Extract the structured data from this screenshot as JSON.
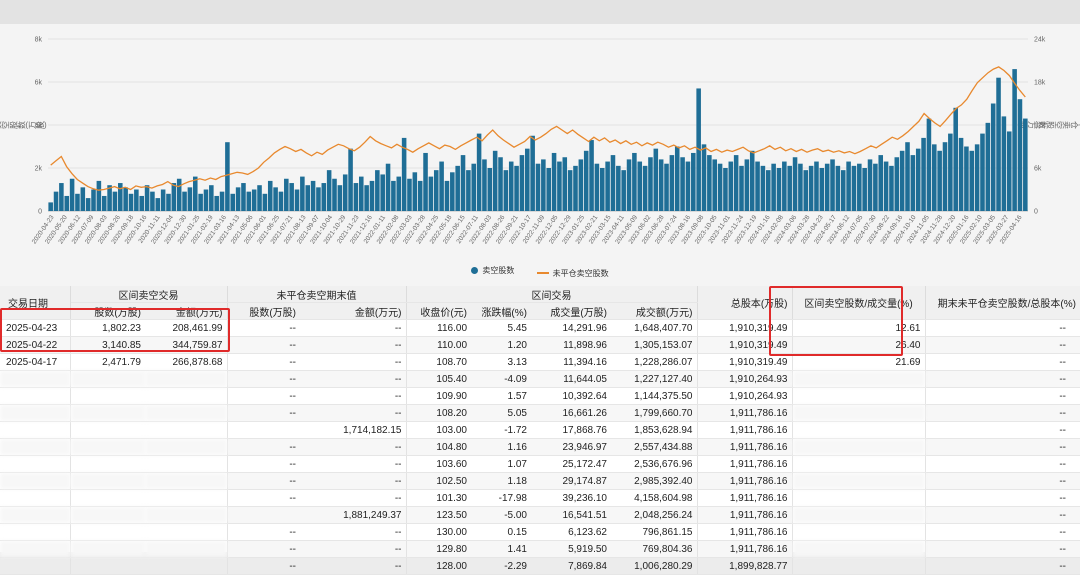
{
  "chart_data": {
    "type": "bar",
    "left_axis": {
      "ticks": [
        "0",
        "2k",
        "4k",
        "6k",
        "8k"
      ],
      "label": "卖空股数(万股)",
      "ylim": [
        0,
        8000
      ]
    },
    "right_axis": {
      "ticks": [
        "0",
        "6k",
        "12k",
        "18k",
        "24k"
      ],
      "label": "未平仓卖空股数(万股)",
      "ylim": [
        0,
        24000
      ]
    },
    "x_ticks": [
      "2020-04-23",
      "2020-05-20",
      "2020-06-12",
      "2020-07-09",
      "2020-08-03",
      "2020-08-26",
      "2020-09-18",
      "2020-10-16",
      "2020-11-11",
      "2020-12-04",
      "2020-12-30",
      "2021-01-25",
      "2021-02-19",
      "2021-03-16",
      "2021-04-13",
      "2021-05-06",
      "2021-06-01",
      "2021-06-25",
      "2021-07-21",
      "2021-08-13",
      "2021-09-07",
      "2021-10-04",
      "2021-10-29",
      "2021-11-23",
      "2021-12-16",
      "2022-01-11",
      "2022-02-08",
      "2022-03-03",
      "2022-03-28",
      "2022-04-25",
      "2022-05-18",
      "2022-06-15",
      "2022-07-11",
      "2022-08-03",
      "2022-08-26",
      "2022-09-21",
      "2022-10-17",
      "2022-11-09",
      "2022-12-05",
      "2022-12-29",
      "2023-01-25",
      "2023-02-21",
      "2023-03-15",
      "2023-04-11",
      "2023-05-09",
      "2023-06-02",
      "2023-06-28",
      "2023-07-24",
      "2023-08-16",
      "2023-09-08",
      "2023-10-05",
      "2023-11-01",
      "2023-11-24",
      "2023-12-19",
      "2024-01-16",
      "2024-02-08",
      "2024-03-06",
      "2024-03-28",
      "2024-04-23",
      "2024-05-17",
      "2024-06-12",
      "2024-07-05",
      "2024-07-30",
      "2024-08-22",
      "2024-09-16",
      "2024-10-10",
      "2024-11-05",
      "2024-11-28",
      "2024-12-20",
      "2025-01-16",
      "2025-02-10",
      "2025-03-05",
      "2025-03-27",
      "2025-04-16"
    ],
    "series": [
      {
        "name": "卖空股数",
        "type": "bar",
        "color": "#1f6e96",
        "values": [
          400,
          900,
          1300,
          700,
          1500,
          800,
          1100,
          600,
          1000,
          1400,
          700,
          1200,
          900,
          1300,
          1100,
          800,
          1000,
          700,
          1200,
          900,
          600,
          1000,
          800,
          1300,
          1500,
          900,
          1100,
          1600,
          800,
          1000,
          1200,
          700,
          900,
          3200,
          800,
          1100,
          1300,
          900,
          1000,
          1200,
          800,
          1400,
          1100,
          900,
          1500,
          1300,
          1000,
          1600,
          1200,
          1400,
          1100,
          1300,
          1900,
          1500,
          1200,
          1700,
          2900,
          1300,
          1600,
          1200,
          1400,
          1900,
          1700,
          2200,
          1400,
          1600,
          3400,
          1500,
          1800,
          1400,
          2700,
          1600,
          1900,
          2300,
          1400,
          1800,
          2100,
          2600,
          1900,
          2200,
          3600,
          2400,
          2000,
          2800,
          2500,
          1900,
          2300,
          2100,
          2600,
          2900,
          3500,
          2200,
          2400,
          2000,
          2700,
          2300,
          2500,
          1900,
          2100,
          2400,
          2800,
          3300,
          2200,
          2000,
          2300,
          2600,
          2100,
          1900,
          2400,
          2700,
          2300,
          2100,
          2500,
          2900,
          2400,
          2200,
          2600,
          3000,
          2500,
          2300,
          2700,
          5700,
          3100,
          2600,
          2400,
          2200,
          2000,
          2300,
          2600,
          2100,
          2400,
          2800,
          2300,
          2100,
          1900,
          2200,
          2000,
          2300,
          2100,
          2500,
          2200,
          1900,
          2100,
          2300,
          2000,
          2200,
          2400,
          2100,
          1900,
          2300,
          2100,
          2200,
          2000,
          2400,
          2200,
          2600,
          2300,
          2100,
          2500,
          2800,
          3200,
          2600,
          2900,
          3400,
          4300,
          3100,
          2800,
          3200,
          3600,
          4800,
          3400,
          3000,
          2800,
          3100,
          3600,
          4100,
          5000,
          6200,
          4400,
          3700,
          6600,
          5200,
          4300
        ]
      },
      {
        "name": "未平仓卖空股数",
        "type": "line",
        "color": "#e8892e",
        "values": [
          6400,
          7000,
          7600,
          6200,
          5200,
          4400,
          3900,
          3400,
          3100,
          2900,
          3000,
          3200,
          3400,
          3100,
          3300,
          3000,
          3500,
          3300,
          3400,
          3200,
          3500,
          3700,
          4100,
          3600,
          3400,
          3800,
          4100,
          4300,
          4500,
          4300,
          4600,
          4400,
          4800,
          5000,
          5200,
          5400,
          5300,
          5100,
          5500,
          6000,
          6800,
          7400,
          8100,
          8600,
          9000,
          8700,
          8300,
          8600,
          8100,
          7700,
          8200,
          7900,
          8500,
          8900,
          9300,
          9100,
          8700,
          8400,
          8900,
          9600,
          10400,
          9800,
          9400,
          9100,
          8800,
          9300,
          8900,
          8600,
          8200,
          8700,
          9100,
          9500,
          9100,
          8700,
          9200,
          9000,
          8600,
          9100,
          9500,
          9900,
          10300,
          9800,
          10600,
          11300,
          10500,
          9900,
          9400,
          8900,
          9300,
          9700,
          10400,
          9900,
          10300,
          10800,
          11400,
          11800,
          11300,
          10800,
          11300,
          10700,
          10200,
          9700,
          10300,
          9800,
          10200,
          9600,
          9900,
          9400,
          9800,
          9300,
          9600,
          9100,
          9500,
          9200,
          9600,
          9300,
          8900,
          9200,
          8800,
          9100,
          8600,
          8900,
          8500,
          8800,
          8300,
          8600,
          8200,
          8500,
          8300,
          8600,
          8900,
          8400,
          8100,
          8400,
          8700,
          9100,
          8600,
          8900,
          8400,
          8700,
          8300,
          8600,
          8200,
          8500,
          8700,
          8300,
          8500,
          8200,
          8400,
          8100,
          8300,
          8000,
          8300,
          8700,
          9100,
          8800,
          9300,
          9800,
          10300,
          10000,
          10500,
          11100,
          11800,
          12500,
          13600,
          12900,
          12300,
          11800,
          12600,
          13500,
          14300,
          14800,
          15600,
          16800,
          17900,
          18600,
          19300,
          19800,
          20100,
          19600,
          18900,
          17800,
          16800,
          15900
        ]
      }
    ]
  },
  "legend": {
    "bar_label": "卖空股数",
    "line_label": "未平仓卖空股数"
  },
  "table": {
    "group_headers": {
      "date": "交易日期",
      "interval_short": "区间卖空交易",
      "open_short": "未平仓卖空期末值",
      "interval_trade": "区间交易",
      "total_shares": "总股本(万股)",
      "ratio_volume": "区间卖空股数/成交量(%)",
      "ratio_total": "期末未平仓卖空股数/总股本(%)"
    },
    "sub_headers": {
      "short_shares": "股数(万股)",
      "short_amount": "金额(万元)",
      "open_shares": "股数(万股)",
      "open_amount": "金额(万元)",
      "close": "收盘价(元)",
      "change": "涨跌幅(%)",
      "volume": "成交量(万股)",
      "turnover": "成交额(万元)"
    },
    "rows": [
      {
        "date": "2025-04-23",
        "short_shares": "1,802.23",
        "short_amount": "208,461.99",
        "open_shares": "--",
        "open_amount": "--",
        "close": "116.00",
        "change": "5.45",
        "volume": "14,291.96",
        "turnover": "1,648,407.70",
        "total": "1,910,319.49",
        "ratio": "12.61",
        "ratio_total": "--"
      },
      {
        "date": "2025-04-22",
        "short_shares": "3,140.85",
        "short_amount": "344,759.87",
        "open_shares": "--",
        "open_amount": "--",
        "close": "110.00",
        "change": "1.20",
        "volume": "11,898.96",
        "turnover": "1,305,153.07",
        "total": "1,910,319.49",
        "ratio": "26.40",
        "ratio_total": "--"
      },
      {
        "date": "2025-04-17",
        "short_shares": "2,471.79",
        "short_amount": "266,878.68",
        "open_shares": "--",
        "open_amount": "--",
        "close": "108.70",
        "change": "3.13",
        "volume": "11,394.16",
        "turnover": "1,228,286.07",
        "total": "1,910,319.49",
        "ratio": "21.69",
        "ratio_total": "--"
      },
      {
        "date": "",
        "short_shares": "",
        "short_amount": "",
        "open_shares": "--",
        "open_amount": "--",
        "close": "105.40",
        "change": "-4.09",
        "volume": "11,644.05",
        "turnover": "1,227,127.40",
        "total": "1,910,264.93",
        "ratio": "",
        "ratio_total": "--"
      },
      {
        "date": "",
        "short_shares": "",
        "short_amount": "",
        "open_shares": "--",
        "open_amount": "--",
        "close": "109.90",
        "change": "1.57",
        "volume": "10,392.64",
        "turnover": "1,144,375.50",
        "total": "1,910,264.93",
        "ratio": "",
        "ratio_total": "--"
      },
      {
        "date": "",
        "short_shares": "",
        "short_amount": "",
        "open_shares": "--",
        "open_amount": "--",
        "close": "108.20",
        "change": "5.05",
        "volume": "16,661.26",
        "turnover": "1,799,660.70",
        "total": "1,911,786.16",
        "ratio": "",
        "ratio_total": "--"
      },
      {
        "date": "",
        "short_shares": "",
        "short_amount": "",
        "open_shares": "",
        "open_amount": "1,714,182.15",
        "close": "103.00",
        "change": "-1.72",
        "volume": "17,868.76",
        "turnover": "1,853,628.94",
        "total": "1,911,786.16",
        "ratio": "",
        "ratio_total": "--"
      },
      {
        "date": "",
        "short_shares": "",
        "short_amount": "",
        "open_shares": "--",
        "open_amount": "--",
        "close": "104.80",
        "change": "1.16",
        "volume": "23,946.97",
        "turnover": "2,557,434.88",
        "total": "1,911,786.16",
        "ratio": "",
        "ratio_total": "--"
      },
      {
        "date": "",
        "short_shares": "",
        "short_amount": "",
        "open_shares": "--",
        "open_amount": "--",
        "close": "103.60",
        "change": "1.07",
        "volume": "25,172.47",
        "turnover": "2,536,676.96",
        "total": "1,911,786.16",
        "ratio": "",
        "ratio_total": "--"
      },
      {
        "date": "",
        "short_shares": "",
        "short_amount": "",
        "open_shares": "--",
        "open_amount": "--",
        "close": "102.50",
        "change": "1.18",
        "volume": "29,174.87",
        "turnover": "2,985,392.40",
        "total": "1,911,786.16",
        "ratio": "",
        "ratio_total": "--"
      },
      {
        "date": "",
        "short_shares": "",
        "short_amount": "",
        "open_shares": "--",
        "open_amount": "--",
        "close": "101.30",
        "change": "-17.98",
        "volume": "39,236.10",
        "turnover": "4,158,604.98",
        "total": "1,911,786.16",
        "ratio": "",
        "ratio_total": "--"
      },
      {
        "date": "",
        "short_shares": "",
        "short_amount": "",
        "open_shares": "",
        "open_amount": "1,881,249.37",
        "close": "123.50",
        "change": "-5.00",
        "volume": "16,541.51",
        "turnover": "2,048,256.24",
        "total": "1,911,786.16",
        "ratio": "",
        "ratio_total": "--"
      },
      {
        "date": "",
        "short_shares": "",
        "short_amount": "",
        "open_shares": "--",
        "open_amount": "--",
        "close": "130.00",
        "change": "0.15",
        "volume": "6,123.62",
        "turnover": "796,861.15",
        "total": "1,911,786.16",
        "ratio": "",
        "ratio_total": "--"
      },
      {
        "date": "",
        "short_shares": "",
        "short_amount": "",
        "open_shares": "--",
        "open_amount": "--",
        "close": "129.80",
        "change": "1.41",
        "volume": "5,919.50",
        "turnover": "769,804.36",
        "total": "1,911,786.16",
        "ratio": "",
        "ratio_total": "--"
      },
      {
        "date": "",
        "short_shares": "",
        "short_amount": "",
        "open_shares": "--",
        "open_amount": "--",
        "close": "128.00",
        "change": "-2.29",
        "volume": "7,869.84",
        "turnover": "1,006,280.29",
        "total": "1,899,828.77",
        "ratio": "",
        "ratio_total": "--"
      }
    ]
  }
}
